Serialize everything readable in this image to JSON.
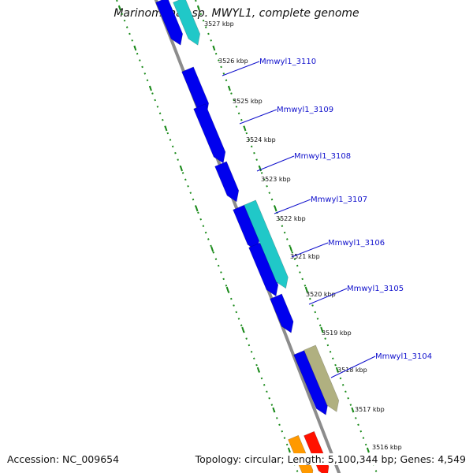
{
  "title": "Marinomonas sp. MWYL1, complete genome",
  "footer": {
    "accession": "Accession: NC_009654",
    "summary": "Topology: circular; Length: 5,100,344 bp; Genes: 4,549"
  },
  "colors": {
    "backbone": "#8c8c8c",
    "dotted_ruler": "#1a8a1a",
    "forward_gene": "#0000ee",
    "cyan_gene": "#20c8c8",
    "olive_gene": "#b0b080",
    "orange_gene": "#ff9900",
    "red_gene": "#ff1100",
    "label_text": "#1010cc"
  },
  "kbp_ticks": [
    "3527 kbp",
    "3526 kbp",
    "3525 kbp",
    "3524 kbp",
    "3523 kbp",
    "3522 kbp",
    "3521 kbp",
    "3520 kbp",
    "3519 kbp",
    "3518 kbp",
    "3517 kbp",
    "3516 kbp"
  ],
  "gene_labels": [
    "Mmwyl1_3110",
    "Mmwyl1_3109",
    "Mmwyl1_3108",
    "Mmwyl1_3107",
    "Mmwyl1_3106",
    "Mmwyl1_3105",
    "Mmwyl1_3104"
  ]
}
